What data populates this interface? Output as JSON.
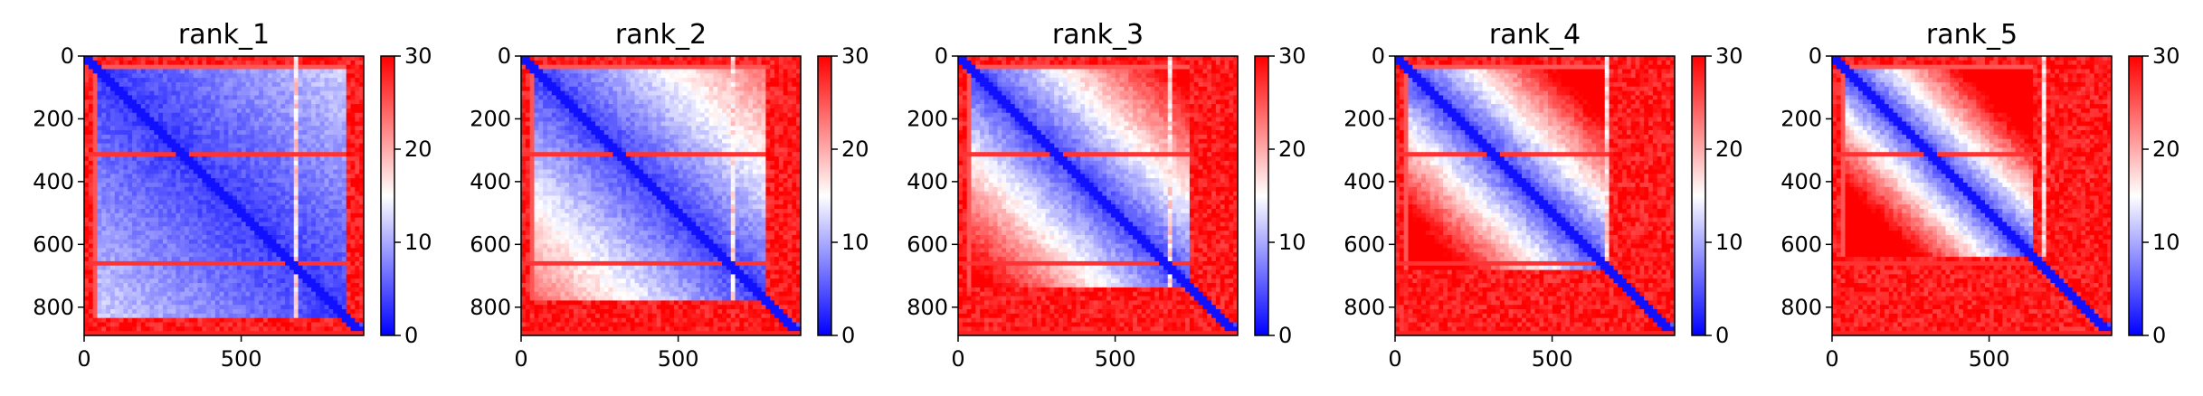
{
  "chart_data": [
    {
      "type": "heatmap",
      "title": "rank_1",
      "x_ticks": [
        0,
        500
      ],
      "y_ticks": [
        0,
        200,
        400,
        600,
        800
      ],
      "xlim": [
        0,
        890
      ],
      "ylim": [
        890,
        0
      ],
      "colorbar": {
        "min": 0,
        "max": 30,
        "ticks": [
          0,
          10,
          20,
          30
        ],
        "colormap": "bwr"
      },
      "matrix_size": 890
    },
    {
      "type": "heatmap",
      "title": "rank_2",
      "x_ticks": [
        0,
        500
      ],
      "y_ticks": [
        0,
        200,
        400,
        600,
        800
      ],
      "xlim": [
        0,
        890
      ],
      "ylim": [
        890,
        0
      ],
      "colorbar": {
        "min": 0,
        "max": 30,
        "ticks": [
          0,
          10,
          20,
          30
        ],
        "colormap": "bwr"
      },
      "matrix_size": 890
    },
    {
      "type": "heatmap",
      "title": "rank_3",
      "x_ticks": [
        0,
        500
      ],
      "y_ticks": [
        0,
        200,
        400,
        600,
        800
      ],
      "xlim": [
        0,
        890
      ],
      "ylim": [
        890,
        0
      ],
      "colorbar": {
        "min": 0,
        "max": 30,
        "ticks": [
          0,
          10,
          20,
          30
        ],
        "colormap": "bwr"
      },
      "matrix_size": 890
    },
    {
      "type": "heatmap",
      "title": "rank_4",
      "x_ticks": [
        0,
        500
      ],
      "y_ticks": [
        0,
        200,
        400,
        600,
        800
      ],
      "xlim": [
        0,
        890
      ],
      "ylim": [
        890,
        0
      ],
      "colorbar": {
        "min": 0,
        "max": 30,
        "ticks": [
          0,
          10,
          20,
          30
        ],
        "colormap": "bwr"
      },
      "matrix_size": 890
    },
    {
      "type": "heatmap",
      "title": "rank_5",
      "x_ticks": [
        0,
        500
      ],
      "y_ticks": [
        0,
        200,
        400,
        600,
        800
      ],
      "xlim": [
        0,
        890
      ],
      "ylim": [
        890,
        0
      ],
      "colorbar": {
        "min": 0,
        "max": 30,
        "ticks": [
          0,
          10,
          20,
          30
        ],
        "colormap": "bwr"
      },
      "matrix_size": 890
    }
  ],
  "colors": {
    "low": "#0000ff",
    "mid": "#ffffff",
    "high": "#ff0000"
  }
}
